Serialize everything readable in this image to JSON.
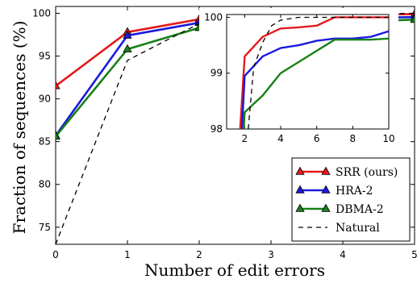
{
  "chart_data": {
    "type": "line",
    "xlabel": "Number of edit errors",
    "ylabel": "Fraction of sequences (%)",
    "xlim": [
      0,
      5
    ],
    "ylim": [
      73,
      100.8
    ],
    "xticks": [
      "0",
      "1",
      "2",
      "3",
      "4",
      "5"
    ],
    "yticks": [
      "75",
      "80",
      "85",
      "90",
      "95",
      "100"
    ],
    "legend_position": "lower-right",
    "series": [
      {
        "name": "SRR (ours)",
        "color": "#e41a1c",
        "marker": "triangle",
        "dashed": false,
        "x": [
          0,
          1,
          2,
          3,
          4,
          5
        ],
        "y": [
          91.5,
          97.8,
          99.3,
          99.6,
          99.8,
          99.9
        ]
      },
      {
        "name": "HRA-2",
        "color": "#1a1adb",
        "marker": "triangle",
        "dashed": false,
        "x": [
          0,
          1,
          2,
          3,
          4,
          5
        ],
        "y": [
          85.7,
          97.4,
          98.9,
          99.3,
          99.45,
          99.55
        ]
      },
      {
        "name": "DBMA-2",
        "color": "#188018",
        "marker": "triangle",
        "dashed": false,
        "x": [
          0,
          1,
          2,
          3,
          4,
          5
        ],
        "y": [
          85.6,
          95.8,
          98.3,
          98.6,
          99.0,
          99.25
        ]
      },
      {
        "name": "Natural",
        "color": "#000000",
        "marker": "none",
        "dashed": true,
        "x": [
          0,
          1,
          2,
          3,
          4,
          5
        ],
        "y": [
          73.0,
          94.5,
          98.8,
          99.5,
          99.85,
          100.0
        ]
      }
    ],
    "inset": {
      "xlim": [
        1,
        10
      ],
      "ylim": [
        98,
        100.05
      ],
      "xticks": [
        "2",
        "4",
        "6",
        "8",
        "10"
      ],
      "yticks": [
        "98",
        "99",
        "100"
      ],
      "series": [
        {
          "name": "SRR (ours)",
          "x": [
            1.75,
            2,
            3,
            4,
            5,
            6,
            7,
            8,
            9,
            10
          ],
          "y": [
            98,
            99.3,
            99.65,
            99.8,
            99.82,
            99.85,
            100,
            100,
            100,
            100
          ]
        },
        {
          "name": "HRA-2",
          "x": [
            1.85,
            2,
            3,
            4,
            5,
            6,
            7,
            8,
            9,
            10
          ],
          "y": [
            98,
            98.95,
            99.3,
            99.45,
            99.5,
            99.58,
            99.62,
            99.62,
            99.65,
            99.75
          ]
        },
        {
          "name": "DBMA-2",
          "x": [
            1.95,
            2,
            3,
            4,
            5,
            6,
            7,
            8,
            9,
            10
          ],
          "y": [
            98,
            98.3,
            98.6,
            99.0,
            99.2,
            99.4,
            99.6,
            99.6,
            99.6,
            99.62
          ]
        },
        {
          "name": "Natural",
          "x": [
            2.2,
            2.5,
            3,
            3.5,
            4,
            5,
            6,
            7,
            8,
            9,
            10
          ],
          "y": [
            98,
            99.1,
            99.55,
            99.85,
            99.95,
            100,
            100,
            100,
            100,
            100,
            100
          ]
        }
      ]
    }
  }
}
